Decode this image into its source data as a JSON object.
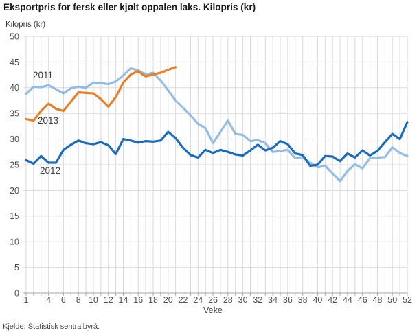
{
  "title": "Eksportpris for fersk eller kjølt oppalen laks. Kilopris (kr)",
  "source": "Kjelde: Statistisk sentralbyrå.",
  "chart_data": {
    "type": "line",
    "title": "Eksportpris for fersk eller kjølt oppalen laks. Kilopris (kr)",
    "xlabel": "Veke",
    "ylabel": "Kilopris (kr)",
    "xlim": [
      1,
      52
    ],
    "ylim": [
      0,
      50
    ],
    "y_tick_step": 5,
    "x_tick_labels": [
      1,
      4,
      6,
      8,
      10,
      12,
      14,
      16,
      18,
      20,
      22,
      24,
      26,
      28,
      30,
      32,
      34,
      36,
      38,
      40,
      42,
      44,
      46,
      48,
      50,
      52
    ],
    "grid": true,
    "legend_position": "inline-labels-left",
    "colors": {
      "grid": "#dadada",
      "axis": "#c4c4c4",
      "x_axis": "#a6a6a6",
      "tick_text": "#4d4d4d"
    },
    "series": [
      {
        "name": "2011",
        "color": "#93BDE4",
        "start_week": 1,
        "values": [
          38.8,
          40.2,
          40.1,
          40.5,
          39.7,
          38.9,
          39.9,
          40.2,
          40.0,
          41.0,
          40.9,
          40.7,
          41.2,
          42.4,
          43.8,
          43.4,
          42.6,
          42.9,
          41.4,
          39.5,
          37.5,
          36.1,
          34.6,
          33.0,
          32.1,
          29.2,
          31.4,
          33.6,
          31.0,
          30.8,
          29.6,
          29.8,
          29.2,
          27.5,
          27.7,
          27.9,
          26.3,
          26.5,
          25.4,
          24.5,
          24.8,
          23.3,
          21.8,
          23.8,
          25.1,
          24.3,
          26.3,
          26.4,
          26.5,
          28.4,
          27.3,
          26.7
        ]
      },
      {
        "name": "2013",
        "color": "#E87E28",
        "start_week": 1,
        "values": [
          33.9,
          33.6,
          35.5,
          36.9,
          35.9,
          35.5,
          37.3,
          39.1,
          39.0,
          38.9,
          37.8,
          36.3,
          38.2,
          41.0,
          42.6,
          43.2,
          42.2,
          42.6,
          42.9,
          43.5,
          44.0
        ]
      },
      {
        "name": "2012",
        "color": "#1B6CB9",
        "start_week": 1,
        "values": [
          25.9,
          25.2,
          26.7,
          25.4,
          25.4,
          27.9,
          28.9,
          29.7,
          29.2,
          29.0,
          29.4,
          28.8,
          27.1,
          30.0,
          29.7,
          29.3,
          29.6,
          29.5,
          29.7,
          31.4,
          30.2,
          28.3,
          26.9,
          26.4,
          27.9,
          27.3,
          27.9,
          27.5,
          27.0,
          26.8,
          27.8,
          28.9,
          27.8,
          28.3,
          29.6,
          29.0,
          27.2,
          26.9,
          24.8,
          25.0,
          26.7,
          26.6,
          25.7,
          27.2,
          26.4,
          27.8,
          26.8,
          27.7,
          29.4,
          31.0,
          30.0,
          33.3
        ]
      }
    ]
  }
}
